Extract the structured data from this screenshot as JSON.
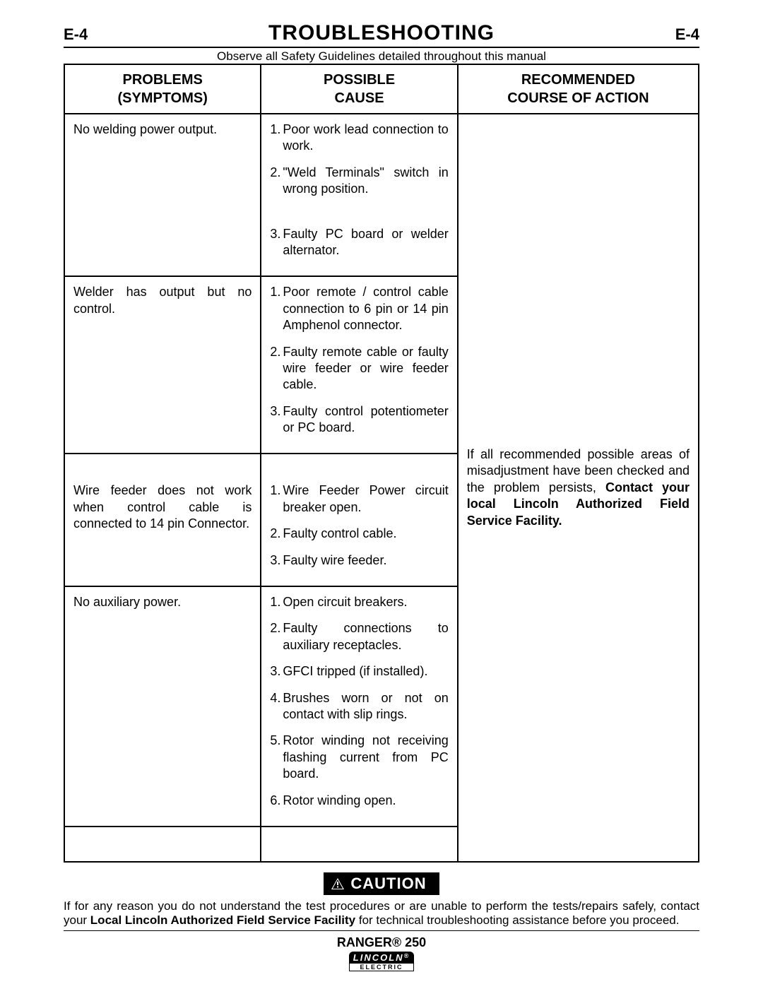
{
  "header": {
    "code_left": "E-4",
    "title": "TROUBLESHOOTING",
    "code_right": "E-4"
  },
  "safety_note": "Observe all Safety Guidelines detailed throughout this manual",
  "table": {
    "headers": {
      "problems": "PROBLEMS (SYMPTOMS)",
      "cause": "POSSIBLE CAUSE",
      "action": "RECOMMENDED COURSE OF ACTION"
    },
    "rows": [
      {
        "problem": "No welding power output.",
        "causes": [
          "Poor work lead connection to work.",
          "\"Weld Terminals\" switch in wrong position.",
          "Faulty PC board or welder alternator."
        ]
      },
      {
        "problem": "Welder has output but no control.",
        "causes": [
          "Poor remote / control cable connection to 6 pin or 14 pin Amphenol connector.",
          "Faulty remote cable or faulty wire feeder or wire feeder cable.",
          "Faulty control potentiometer or PC board."
        ]
      },
      {
        "problem": "Wire feeder does not work when control cable is connected to 14 pin Connector.",
        "causes": [
          "Wire Feeder Power circuit breaker open.",
          "Faulty control cable.",
          "Faulty wire feeder."
        ]
      },
      {
        "problem": "No auxiliary power.",
        "causes": [
          "Open circuit breakers.",
          "Faulty connections to auxiliary receptacles.",
          "GFCI tripped (if installed).",
          "Brushes worn or not on contact with slip rings.",
          "Rotor winding not receiving flashing current from PC board.",
          "Rotor winding open."
        ]
      }
    ],
    "action_text_plain": "If all recommended possible areas of misadjustment have been checked and the problem persists, ",
    "action_text_bold": "Contact your local Lincoln Authorized Field Service Facility."
  },
  "caution_label": "CAUTION",
  "footer": {
    "text_pre": "If for any reason you do not understand the test procedures or are unable to perform the tests/repairs safely, contact your ",
    "text_bold": "Local  Lincoln Authorized Field Service Facility",
    "text_post": " for technical troubleshooting assistance before you proceed."
  },
  "product": {
    "name": "RANGER® 250",
    "logo_top": "LINCOLN",
    "logo_bot": "ELECTRIC"
  }
}
